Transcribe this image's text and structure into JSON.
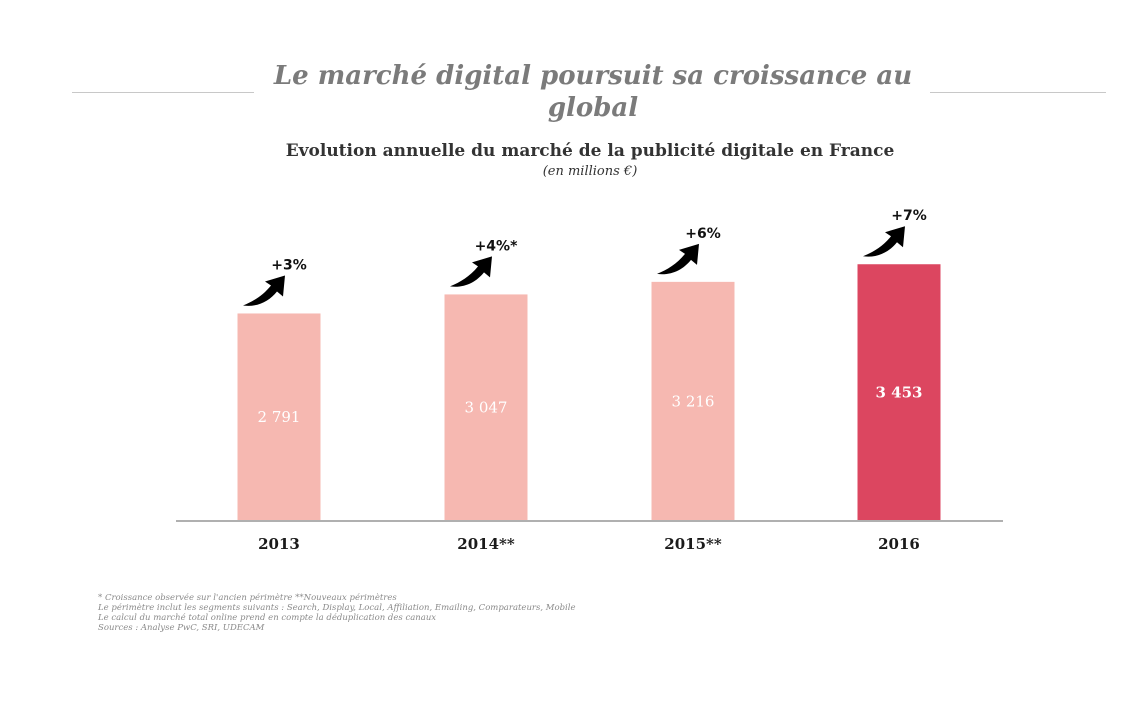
{
  "title": "Le marché digital poursuit sa croissance au global",
  "chart_data": {
    "type": "bar",
    "title": "Evolution annuelle du marché de la publicité digitale en France",
    "subtitle": "(en millions €)",
    "categories": [
      "2013",
      "2014**",
      "2015**",
      "2016"
    ],
    "values": [
      2791,
      3047,
      3216,
      3453
    ],
    "value_labels": [
      "2 791",
      "3 047",
      "3 216",
      "3 453"
    ],
    "growth_labels": [
      "+3%",
      "+4%*",
      "+6%",
      "+7%"
    ],
    "ylim": [
      0,
      3900
    ],
    "grid": false,
    "colors": {
      "bar": "#f6b8b1",
      "highlight_bar": "#dc4660",
      "axis": "#b0b0b0",
      "arrow": "#000000"
    },
    "highlight_index": 3
  },
  "footnotes": [
    "* Croissance observée  sur l'ancien périmètre **Nouveaux périmètres",
    "Le périmètre inclut les segments suivants : Search, Display, Local, Affiliation, Emailing, Comparateurs, Mobile",
    "Le calcul du marché total online prend en compte la déduplication des canaux",
    "Sources : Analyse PwC, SRI, UDECAM"
  ]
}
